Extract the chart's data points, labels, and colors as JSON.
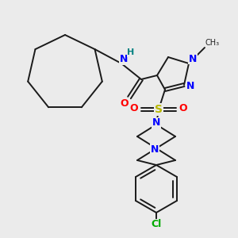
{
  "background_color": "#ebebeb",
  "figsize": [
    3.0,
    3.0
  ],
  "dpi": 100,
  "colors": {
    "N": "#0000ff",
    "O": "#ff0000",
    "S": "#b8b800",
    "Cl": "#00aa00",
    "H": "#008080",
    "bond": "#1a1a1a"
  }
}
